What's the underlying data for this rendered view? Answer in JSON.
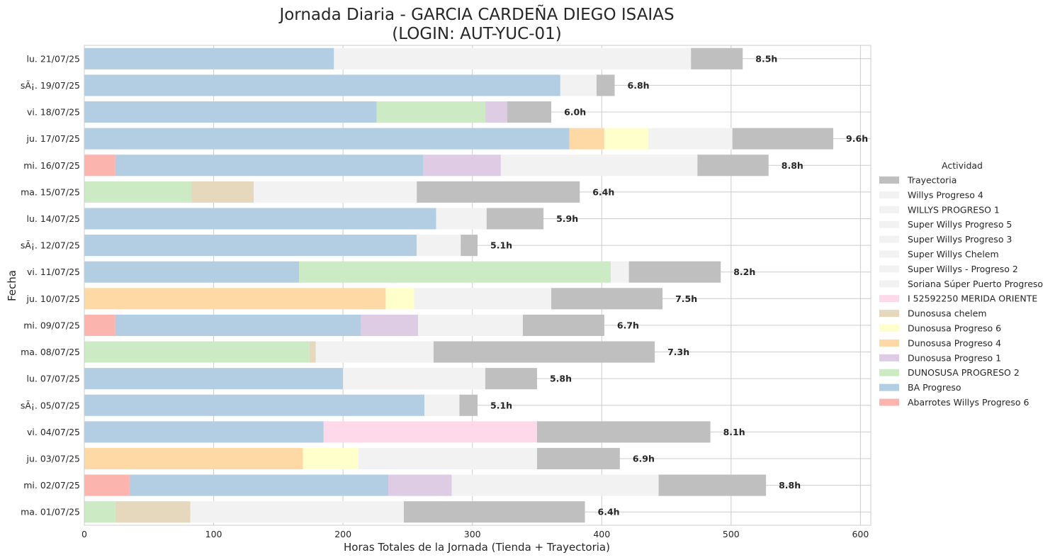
{
  "chart_data": {
    "type": "bar",
    "orientation": "horizontal",
    "stacked": true,
    "title_line1": "Jornada Diaria - GARCIA CARDEÑA DIEGO ISAIAS",
    "title_line2": "(LOGIN: AUT-YUC-01)",
    "xlabel": "Horas Totales de la Jornada (Tienda + Trayectoria)",
    "ylabel": "Fecha",
    "xlim": [
      0,
      608
    ],
    "xticks": [
      0,
      100,
      200,
      300,
      400,
      500,
      600
    ],
    "grid": true,
    "legend_title": "Actividad",
    "legend_placement": "center-right",
    "legend": [
      {
        "name": "Trayectoria",
        "color": "#bfbfbf"
      },
      {
        "name": "Willys Progreso 4",
        "color": "#f2f2f2"
      },
      {
        "name": "WILLYS PROGRESO 1",
        "color": "#f2f2f2"
      },
      {
        "name": "Super Willys Progreso 5",
        "color": "#f2f2f2"
      },
      {
        "name": "Super Willys Progreso 3",
        "color": "#f2f2f2"
      },
      {
        "name": "Super Willys Chelem",
        "color": "#f2f2f2"
      },
      {
        "name": "Super Willys - Progreso 2",
        "color": "#f2f2f2"
      },
      {
        "name": "Soriana Súper Puerto Progreso",
        "color": "#f2f2f2"
      },
      {
        "name": "I 52592250 MERIDA ORIENTE",
        "color": "#fdd9ea"
      },
      {
        "name": "Dunosusa chelem",
        "color": "#e5d8bd"
      },
      {
        "name": "Dunosusa Progreso 6",
        "color": "#ffffcc"
      },
      {
        "name": "Dunosusa Progreso 4",
        "color": "#fed9a6"
      },
      {
        "name": "Dunosusa Progreso 1",
        "color": "#decbe4"
      },
      {
        "name": "DUNOSUSA PROGRESO 2",
        "color": "#ccebc5"
      },
      {
        "name": "BA Progreso",
        "color": "#b3cde3"
      },
      {
        "name": "Abarrotes Willys Progreso 6",
        "color": "#fbb4ae"
      }
    ],
    "rows": [
      {
        "date": "lu. 21/07/25",
        "total_label": "8.5h",
        "segments": [
          {
            "activity": "BA Progreso",
            "value": 193
          },
          {
            "activity": "Super Willys Progreso 3",
            "value": 276
          },
          {
            "activity": "Trayectoria",
            "value": 40
          }
        ]
      },
      {
        "date": "sÃ¡. 19/07/25",
        "total_label": "6.8h",
        "segments": [
          {
            "activity": "BA Progreso",
            "value": 368
          },
          {
            "activity": "Super Willys Progreso 3",
            "value": 28
          },
          {
            "activity": "Trayectoria",
            "value": 14
          }
        ]
      },
      {
        "date": "vi. 18/07/25",
        "total_label": "6.0h",
        "segments": [
          {
            "activity": "BA Progreso",
            "value": 226
          },
          {
            "activity": "DUNOSUSA PROGRESO 2",
            "value": 84
          },
          {
            "activity": "Dunosusa Progreso 1",
            "value": 17
          },
          {
            "activity": "Trayectoria",
            "value": 34
          }
        ]
      },
      {
        "date": "ju. 17/07/25",
        "total_label": "9.6h",
        "segments": [
          {
            "activity": "BA Progreso",
            "value": 375
          },
          {
            "activity": "Dunosusa Progreso 4",
            "value": 27
          },
          {
            "activity": "Dunosusa Progreso 6",
            "value": 34
          },
          {
            "activity": "Super Willys Progreso 3",
            "value": 65
          },
          {
            "activity": "Trayectoria",
            "value": 78
          }
        ]
      },
      {
        "date": "mi. 16/07/25",
        "total_label": "8.8h",
        "segments": [
          {
            "activity": "Abarrotes Willys Progreso 6",
            "value": 24
          },
          {
            "activity": "BA Progreso",
            "value": 238
          },
          {
            "activity": "Dunosusa Progreso 1",
            "value": 60
          },
          {
            "activity": "Super Willys Progreso 3",
            "value": 152
          },
          {
            "activity": "Trayectoria",
            "value": 55
          }
        ]
      },
      {
        "date": "ma. 15/07/25",
        "total_label": "6.4h",
        "segments": [
          {
            "activity": "DUNOSUSA PROGRESO 2",
            "value": 83
          },
          {
            "activity": "Dunosusa chelem",
            "value": 48
          },
          {
            "activity": "Super Willys Chelem",
            "value": 126
          },
          {
            "activity": "Trayectoria",
            "value": 126
          }
        ]
      },
      {
        "date": "lu. 14/07/25",
        "total_label": "5.9h",
        "segments": [
          {
            "activity": "BA Progreso",
            "value": 272
          },
          {
            "activity": "Super Willys Progreso 3",
            "value": 39
          },
          {
            "activity": "Trayectoria",
            "value": 44
          }
        ]
      },
      {
        "date": "sÃ¡. 12/07/25",
        "total_label": "5.1h",
        "segments": [
          {
            "activity": "BA Progreso",
            "value": 257
          },
          {
            "activity": "Super Willys Progreso 3",
            "value": 34
          },
          {
            "activity": "Trayectoria",
            "value": 13
          }
        ]
      },
      {
        "date": "vi. 11/07/25",
        "total_label": "8.2h",
        "segments": [
          {
            "activity": "BA Progreso",
            "value": 166
          },
          {
            "activity": "DUNOSUSA PROGRESO 2",
            "value": 241
          },
          {
            "activity": "Super Willys Progreso 3",
            "value": 14
          },
          {
            "activity": "Trayectoria",
            "value": 71
          }
        ]
      },
      {
        "date": "ju. 10/07/25",
        "total_label": "7.5h",
        "segments": [
          {
            "activity": "Dunosusa Progreso 4",
            "value": 233
          },
          {
            "activity": "Dunosusa Progreso 6",
            "value": 22
          },
          {
            "activity": "Super Willys Progreso 3",
            "value": 106
          },
          {
            "activity": "Trayectoria",
            "value": 86
          }
        ]
      },
      {
        "date": "mi. 09/07/25",
        "total_label": "6.7h",
        "segments": [
          {
            "activity": "Abarrotes Willys Progreso 6",
            "value": 24
          },
          {
            "activity": "BA Progreso",
            "value": 190
          },
          {
            "activity": "Dunosusa Progreso 1",
            "value": 44
          },
          {
            "activity": "Super Willys Progreso 3",
            "value": 81
          },
          {
            "activity": "Trayectoria",
            "value": 63
          }
        ]
      },
      {
        "date": "ma. 08/07/25",
        "total_label": "7.3h",
        "segments": [
          {
            "activity": "DUNOSUSA PROGRESO 2",
            "value": 174
          },
          {
            "activity": "Dunosusa chelem",
            "value": 5
          },
          {
            "activity": "Super Willys Chelem",
            "value": 91
          },
          {
            "activity": "Trayectoria",
            "value": 171
          }
        ]
      },
      {
        "date": "lu. 07/07/25",
        "total_label": "5.8h",
        "segments": [
          {
            "activity": "BA Progreso",
            "value": 200
          },
          {
            "activity": "Super Willys Progreso 3",
            "value": 110
          },
          {
            "activity": "Trayectoria",
            "value": 40
          }
        ]
      },
      {
        "date": "sÃ¡. 05/07/25",
        "total_label": "5.1h",
        "segments": [
          {
            "activity": "BA Progreso",
            "value": 263
          },
          {
            "activity": "Super Willys Progreso 3",
            "value": 27
          },
          {
            "activity": "Trayectoria",
            "value": 14
          }
        ]
      },
      {
        "date": "vi. 04/07/25",
        "total_label": "8.1h",
        "segments": [
          {
            "activity": "BA Progreso",
            "value": 185
          },
          {
            "activity": "I 52592250 MERIDA ORIENTE",
            "value": 165
          },
          {
            "activity": "Trayectoria",
            "value": 134
          }
        ]
      },
      {
        "date": "ju. 03/07/25",
        "total_label": "6.9h",
        "segments": [
          {
            "activity": "Dunosusa Progreso 4",
            "value": 169
          },
          {
            "activity": "Dunosusa Progreso 6",
            "value": 43
          },
          {
            "activity": "Super Willys Progreso 3",
            "value": 138
          },
          {
            "activity": "Trayectoria",
            "value": 64
          }
        ]
      },
      {
        "date": "mi. 02/07/25",
        "total_label": "8.8h",
        "segments": [
          {
            "activity": "Abarrotes Willys Progreso 6",
            "value": 35
          },
          {
            "activity": "BA Progreso",
            "value": 200
          },
          {
            "activity": "Dunosusa Progreso 1",
            "value": 49
          },
          {
            "activity": "Super Willys Progreso 3",
            "value": 160
          },
          {
            "activity": "Trayectoria",
            "value": 83
          }
        ]
      },
      {
        "date": "ma. 01/07/25",
        "total_label": "6.4h",
        "segments": [
          {
            "activity": "DUNOSUSA PROGRESO 2",
            "value": 24
          },
          {
            "activity": "Dunosusa chelem",
            "value": 58
          },
          {
            "activity": "Super Willys Chelem",
            "value": 165
          },
          {
            "activity": "Trayectoria",
            "value": 140
          }
        ]
      }
    ]
  }
}
